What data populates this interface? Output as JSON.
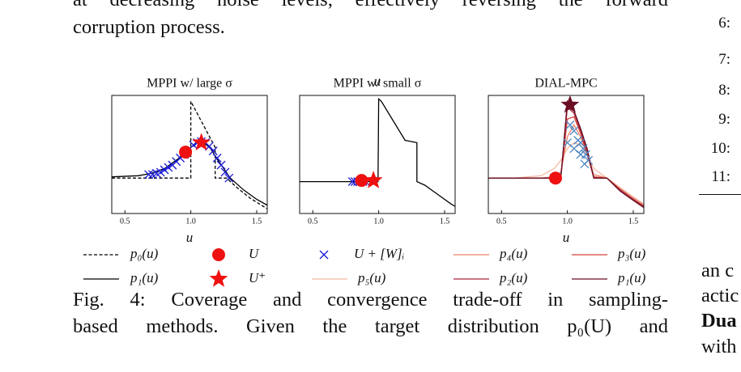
{
  "paper": {
    "top_text": [
      "at decreasing noise levels, effectively reversing the forward",
      "corruption process."
    ],
    "caption": [
      "Fig. 4: Coverage and convergence trade-off in sampling-",
      "based methods. Given the target distribution p₀(U) and"
    ],
    "right_line_numbers": [
      "6:",
      "7:",
      "8:",
      "9:",
      "10:",
      "11:"
    ],
    "right_fragments": [
      "an c",
      "actic",
      "Dua",
      "with"
    ]
  },
  "legend": [
    {
      "label": "p₀(u)",
      "shape": "dashed",
      "color": "#000000"
    },
    {
      "label": "p₁(u)",
      "shape": "line",
      "color": "#000000"
    },
    {
      "label": "U",
      "shape": "circle",
      "color": "#ee1111"
    },
    {
      "label": "U⁺",
      "shape": "star",
      "color": "#ee1111"
    },
    {
      "label": "U + [W]ᵢ",
      "shape": "cross",
      "color": "#1a1ad6"
    },
    {
      "label": "p₅(u)",
      "shape": "line",
      "color": "#f5b9a2"
    },
    {
      "label": "p₄(u)",
      "shape": "line",
      "color": "#ea8468"
    },
    {
      "label": "p₂(u)",
      "shape": "line",
      "color": "#a8263a"
    },
    {
      "label": "p₃(u)",
      "shape": "line",
      "color": "#d6423a"
    },
    {
      "label": "p₁(u)",
      "shape": "line",
      "color": "#6b0e24"
    }
  ],
  "chart_data": [
    {
      "type": "line",
      "title": "MPPI w/ large σ",
      "xlabel": "u",
      "xlim": [
        0.4,
        1.58
      ],
      "ylim": [
        0,
        1
      ],
      "xticks": [
        0.5,
        {
          "value": 1,
          "label": "1.0"
        },
        1.5
      ],
      "series": [
        {
          "name": "p₀(u)",
          "shape": "dashed",
          "color": "#000000",
          "x": [
            0.4,
            1.0,
            1.0,
            1.185,
            1.185,
            1.27,
            1.35,
            1.45,
            1.58
          ],
          "y": [
            0.3,
            0.3,
            0.95,
            0.56,
            0.3,
            0.3,
            0.22,
            0.13,
            0.04
          ]
        },
        {
          "name": "p₁(u)",
          "shape": "line",
          "color": "#000000",
          "x": [
            0.4,
            0.6,
            0.7,
            0.8,
            0.9,
            1.0,
            1.05,
            1.1,
            1.15,
            1.2,
            1.3,
            1.4,
            1.5,
            1.58
          ],
          "y": [
            0.31,
            0.32,
            0.34,
            0.38,
            0.46,
            0.56,
            0.6,
            0.6,
            0.55,
            0.46,
            0.3,
            0.2,
            0.12,
            0.07
          ]
        },
        {
          "name": "U + [W]ᵢ",
          "shape": "cross",
          "color": "#1a1ad6",
          "x": [
            0.68,
            0.71,
            0.74,
            0.77,
            0.8,
            0.83,
            0.86,
            0.89,
            0.92,
            0.95,
            1.02,
            1.05,
            1.08,
            1.11,
            1.14,
            1.17,
            1.2,
            1.23,
            1.26,
            1.29
          ],
          "y": [
            0.33,
            0.33,
            0.34,
            0.35,
            0.37,
            0.39,
            0.41,
            0.44,
            0.47,
            0.5,
            0.58,
            0.6,
            0.61,
            0.6,
            0.57,
            0.53,
            0.47,
            0.41,
            0.35,
            0.3
          ]
        },
        {
          "name": "U",
          "shape": "circle",
          "color": "#ee1111",
          "x": [
            0.96
          ],
          "y": [
            0.52
          ]
        },
        {
          "name": "U⁺",
          "shape": "star",
          "color": "#ee1111",
          "x": [
            1.08
          ],
          "y": [
            0.6
          ]
        }
      ]
    },
    {
      "type": "line",
      "title": "MPPI w/ small σ",
      "xlabel": "u",
      "xlim": [
        0.4,
        1.58
      ],
      "ylim": [
        0,
        1
      ],
      "xticks": [
        0.5,
        {
          "value": 1,
          "label": "1.0"
        },
        1.5
      ],
      "series": [
        {
          "name": "p₁(u)",
          "shape": "line",
          "color": "#000000",
          "x": [
            0.4,
            0.995,
            1.0,
            1.02,
            1.2,
            1.29,
            1.29,
            1.35,
            1.45,
            1.55,
            1.58
          ],
          "y": [
            0.27,
            0.27,
            0.97,
            0.95,
            0.62,
            0.6,
            0.27,
            0.24,
            0.16,
            0.08,
            0.06
          ]
        },
        {
          "name": "U + [W]ᵢ",
          "shape": "cross",
          "color": "#1a1ad6",
          "x": [
            0.8,
            0.82,
            0.84,
            0.86,
            0.88,
            0.9
          ],
          "y": [
            0.27,
            0.27,
            0.27,
            0.27,
            0.27,
            0.27
          ]
        },
        {
          "name": "U",
          "shape": "circle",
          "color": "#ee1111",
          "x": [
            0.87
          ],
          "y": [
            0.28
          ]
        },
        {
          "name": "U⁺",
          "shape": "star",
          "color": "#ee1111",
          "x": [
            0.96
          ],
          "y": [
            0.28
          ]
        }
      ]
    },
    {
      "type": "line",
      "title": "DIAL-MPC",
      "xlabel": "u",
      "xlim": [
        0.4,
        1.58
      ],
      "ylim": [
        0,
        1
      ],
      "xticks": [
        0.5,
        {
          "value": 1,
          "label": "1.0"
        },
        1.5
      ],
      "series": [
        {
          "name": "p₅(u)",
          "shape": "line",
          "color": "#f5b9a2",
          "x": [
            0.4,
            0.6,
            0.8,
            0.9,
            0.95,
            1.0,
            1.05,
            1.1,
            1.15,
            1.2,
            1.3,
            1.4,
            1.5,
            1.58
          ],
          "y": [
            0.3,
            0.3,
            0.32,
            0.38,
            0.45,
            0.55,
            0.6,
            0.58,
            0.5,
            0.38,
            0.3,
            0.22,
            0.14,
            0.08
          ]
        },
        {
          "name": "p₄(u)",
          "shape": "line",
          "color": "#ea8468",
          "x": [
            0.4,
            0.6,
            0.8,
            0.9,
            0.95,
            1.0,
            1.05,
            1.1,
            1.15,
            1.2,
            1.3,
            1.4,
            1.5,
            1.58
          ],
          "y": [
            0.3,
            0.3,
            0.3,
            0.31,
            0.35,
            0.65,
            0.75,
            0.65,
            0.5,
            0.33,
            0.3,
            0.21,
            0.13,
            0.07
          ]
        },
        {
          "name": "p₃(u)",
          "shape": "line",
          "color": "#d6423a",
          "x": [
            0.4,
            0.6,
            0.8,
            0.9,
            0.95,
            1.0,
            1.05,
            1.1,
            1.15,
            1.2,
            1.3,
            1.4,
            1.5,
            1.58
          ],
          "y": [
            0.3,
            0.3,
            0.3,
            0.3,
            0.31,
            0.8,
            0.82,
            0.68,
            0.5,
            0.31,
            0.3,
            0.2,
            0.12,
            0.06
          ]
        },
        {
          "name": "p₂(u)",
          "shape": "line",
          "color": "#a8263a",
          "x": [
            0.4,
            0.6,
            0.8,
            0.9,
            0.95,
            1.0,
            1.05,
            1.1,
            1.15,
            1.2,
            1.3,
            1.4,
            1.5,
            1.58
          ],
          "y": [
            0.3,
            0.3,
            0.3,
            0.3,
            0.3,
            0.9,
            0.85,
            0.7,
            0.52,
            0.3,
            0.3,
            0.2,
            0.12,
            0.06
          ]
        },
        {
          "name": "p₁(u)",
          "shape": "line",
          "color": "#6b0e24",
          "x": [
            0.4,
            0.6,
            0.8,
            0.9,
            0.95,
            1.0,
            1.05,
            1.1,
            1.15,
            1.2,
            1.3,
            1.4,
            1.5,
            1.58
          ],
          "y": [
            0.3,
            0.3,
            0.3,
            0.3,
            0.3,
            0.95,
            0.87,
            0.72,
            0.55,
            0.3,
            0.3,
            0.19,
            0.11,
            0.05
          ]
        },
        {
          "name": "U + [W]ᵢ",
          "shape": "cross",
          "color": "#4f86c0",
          "x": [
            0.9,
            0.92,
            1.0,
            1.02,
            1.05,
            1.08,
            1.1,
            1.12,
            1.14,
            1.16,
            1.05,
            1.1,
            1.13
          ],
          "y": [
            0.3,
            0.31,
            0.6,
            0.75,
            0.7,
            0.62,
            0.6,
            0.55,
            0.5,
            0.45,
            0.55,
            0.5,
            0.42
          ]
        },
        {
          "name": "U",
          "shape": "circle",
          "color": "#ee1111",
          "x": [
            0.91
          ],
          "y": [
            0.3
          ]
        },
        {
          "name": "U⁺",
          "shape": "star",
          "color": "#6b0e24",
          "x": [
            1.02
          ],
          "y": [
            0.92
          ]
        }
      ]
    }
  ]
}
